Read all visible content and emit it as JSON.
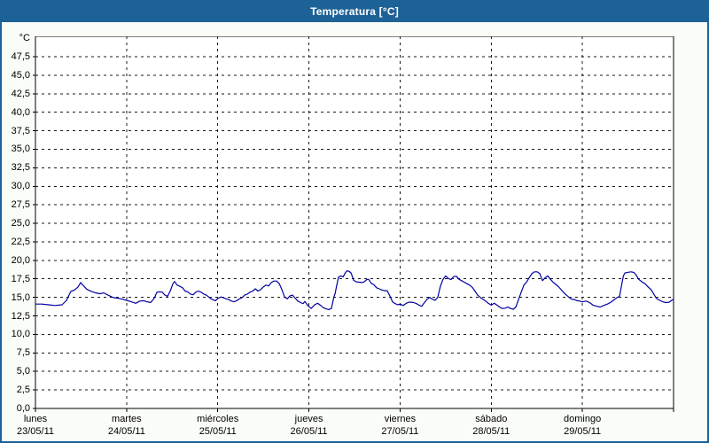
{
  "window": {
    "title": "Temperatura [°C]"
  },
  "colors": {
    "titlebar": "#1d6296",
    "window_border": "#1d6296",
    "content_bg": "#fafdf7",
    "plot_bg": "#ffffff",
    "plot_border": "#000000",
    "grid": "#1a1a1a",
    "line": "#0000a0",
    "title_text": "#ffffff"
  },
  "y_axis": {
    "unit_label": "°C",
    "min": 0,
    "max": 47.5,
    "step": 2.5,
    "tick_labels": [
      "0,0",
      "2,5",
      "5,0",
      "7,5",
      "10,0",
      "12,5",
      "15,0",
      "17,5",
      "20,0",
      "22,5",
      "25,0",
      "27,5",
      "30,0",
      "32,5",
      "35,0",
      "37,5",
      "40,0",
      "42,5",
      "45,0",
      "47,5"
    ]
  },
  "x_axis": {
    "days": [
      {
        "name": "lunes",
        "date": "23/05/11"
      },
      {
        "name": "martes",
        "date": "24/05/11"
      },
      {
        "name": "miércoles",
        "date": "25/05/11"
      },
      {
        "name": "jueves",
        "date": "26/05/11"
      },
      {
        "name": "viernes",
        "date": "27/05/11"
      },
      {
        "name": "sábado",
        "date": "28/05/11"
      },
      {
        "name": "domingo",
        "date": "29/05/11"
      }
    ]
  },
  "chart_data": {
    "type": "line",
    "title": "Temperatura [°C]",
    "ylabel": "°C",
    "ylim": [
      0,
      47.5
    ],
    "y_grid_step": 2.5,
    "grid": "dashed",
    "legend_position": "none",
    "x_unit": "hours from lunes 23/05/11 00:00",
    "x_range_hours": [
      0,
      168
    ],
    "series": [
      {
        "name": "Temperatura",
        "unit": "°C",
        "color": "#0000a0",
        "points": [
          [
            0,
            14.1
          ],
          [
            1.6,
            14.1
          ],
          [
            3.5,
            14.0
          ],
          [
            5.1,
            13.9
          ],
          [
            7.0,
            14.0
          ],
          [
            8.2,
            14.6
          ],
          [
            9.3,
            15.8
          ],
          [
            10.3,
            16.0
          ],
          [
            11.2,
            16.4
          ],
          [
            11.9,
            17.0
          ],
          [
            12.6,
            16.6
          ],
          [
            13.5,
            16.1
          ],
          [
            14.7,
            15.8
          ],
          [
            15.9,
            15.6
          ],
          [
            17.0,
            15.5
          ],
          [
            18.0,
            15.6
          ],
          [
            19.1,
            15.3
          ],
          [
            20.3,
            15.0
          ],
          [
            21.5,
            14.9
          ],
          [
            22.6,
            14.8
          ],
          [
            24,
            14.6
          ],
          [
            25.2,
            14.4
          ],
          [
            26.4,
            14.2
          ],
          [
            27.5,
            14.5
          ],
          [
            28.5,
            14.55
          ],
          [
            29.4,
            14.4
          ],
          [
            30.3,
            14.3
          ],
          [
            31.3,
            14.9
          ],
          [
            32,
            15.7
          ],
          [
            32.7,
            15.75
          ],
          [
            33.4,
            15.7
          ],
          [
            34.1,
            15.3
          ],
          [
            34.8,
            15.15
          ],
          [
            35.5,
            15.85
          ],
          [
            36.2,
            16.85
          ],
          [
            36.6,
            17.15
          ],
          [
            37.3,
            16.65
          ],
          [
            38,
            16.5
          ],
          [
            38.7,
            16.3
          ],
          [
            39.4,
            15.85
          ],
          [
            40.1,
            15.75
          ],
          [
            40.8,
            15.45
          ],
          [
            41.5,
            15.35
          ],
          [
            42.2,
            15.7
          ],
          [
            42.9,
            15.85
          ],
          [
            43.6,
            15.7
          ],
          [
            44.3,
            15.45
          ],
          [
            45,
            15.3
          ],
          [
            45.7,
            15.0
          ],
          [
            46.4,
            14.75
          ],
          [
            47.4,
            14.55
          ],
          [
            48,
            14.85
          ],
          [
            48.8,
            15.05
          ],
          [
            49.5,
            14.95
          ],
          [
            50.2,
            14.8
          ],
          [
            50.9,
            14.7
          ],
          [
            51.6,
            14.5
          ],
          [
            52.3,
            14.4
          ],
          [
            53,
            14.55
          ],
          [
            53.7,
            14.8
          ],
          [
            54.4,
            14.95
          ],
          [
            55.1,
            15.3
          ],
          [
            55.8,
            15.45
          ],
          [
            56.5,
            15.7
          ],
          [
            57.2,
            15.85
          ],
          [
            57.9,
            16.15
          ],
          [
            58.6,
            15.85
          ],
          [
            59.3,
            16.05
          ],
          [
            60,
            16.4
          ],
          [
            60.7,
            16.65
          ],
          [
            61.4,
            16.55
          ],
          [
            62.1,
            17.0
          ],
          [
            62.8,
            17.2
          ],
          [
            63.5,
            17.2
          ],
          [
            64.2,
            16.85
          ],
          [
            64.9,
            16.05
          ],
          [
            65.6,
            15.05
          ],
          [
            66.3,
            14.8
          ],
          [
            67,
            15.2
          ],
          [
            67.7,
            15.3
          ],
          [
            68.4,
            14.9
          ],
          [
            69.1,
            14.5
          ],
          [
            69.8,
            14.3
          ],
          [
            70.5,
            14.15
          ],
          [
            70.9,
            14.45
          ],
          [
            71.4,
            14.1
          ],
          [
            72,
            13.75
          ],
          [
            72.6,
            13.5
          ],
          [
            73.5,
            14.0
          ],
          [
            74.3,
            14.2
          ],
          [
            75.1,
            13.9
          ],
          [
            75.8,
            13.6
          ],
          [
            76.5,
            13.45
          ],
          [
            77.2,
            13.35
          ],
          [
            77.9,
            13.5
          ],
          [
            78.6,
            15.1
          ],
          [
            78.9,
            15.5
          ],
          [
            79.3,
            16.6
          ],
          [
            79.8,
            17.75
          ],
          [
            80.5,
            17.9
          ],
          [
            81,
            17.75
          ],
          [
            81.7,
            18.4
          ],
          [
            82.1,
            18.6
          ],
          [
            82.6,
            18.5
          ],
          [
            83.1,
            18.3
          ],
          [
            83.8,
            17.3
          ],
          [
            84.5,
            17.1
          ],
          [
            85.2,
            17.05
          ],
          [
            85.9,
            17.0
          ],
          [
            86.6,
            17.1
          ],
          [
            87.2,
            17.4
          ],
          [
            87.7,
            17.45
          ],
          [
            88.4,
            16.9
          ],
          [
            89.1,
            16.7
          ],
          [
            89.8,
            16.3
          ],
          [
            90.5,
            16.15
          ],
          [
            91.2,
            16.0
          ],
          [
            91.9,
            15.9
          ],
          [
            92.6,
            15.9
          ],
          [
            93.3,
            15.2
          ],
          [
            94,
            14.4
          ],
          [
            94.7,
            14.15
          ],
          [
            95.4,
            14.0
          ],
          [
            96,
            14.1
          ],
          [
            96.8,
            13.9
          ],
          [
            97.5,
            14.15
          ],
          [
            98.2,
            14.35
          ],
          [
            98.9,
            14.35
          ],
          [
            99.6,
            14.3
          ],
          [
            100.3,
            14.15
          ],
          [
            101,
            13.95
          ],
          [
            101.7,
            13.8
          ],
          [
            102.4,
            14.3
          ],
          [
            103.1,
            14.75
          ],
          [
            103.8,
            15.0
          ],
          [
            104.5,
            14.75
          ],
          [
            105.2,
            14.6
          ],
          [
            105.9,
            15.0
          ],
          [
            106.6,
            16.5
          ],
          [
            107.3,
            17.45
          ],
          [
            108,
            17.9
          ],
          [
            108.7,
            17.55
          ],
          [
            109.4,
            17.4
          ],
          [
            110.1,
            17.8
          ],
          [
            110.8,
            17.85
          ],
          [
            111.5,
            17.45
          ],
          [
            112.2,
            17.25
          ],
          [
            112.9,
            17.05
          ],
          [
            113.6,
            16.85
          ],
          [
            114.3,
            16.65
          ],
          [
            115,
            16.35
          ],
          [
            115.7,
            15.85
          ],
          [
            116.4,
            15.3
          ],
          [
            117.1,
            15.0
          ],
          [
            117.8,
            14.75
          ],
          [
            118.5,
            14.5
          ],
          [
            119.2,
            14.2
          ],
          [
            120,
            13.95
          ],
          [
            120.8,
            14.2
          ],
          [
            121.5,
            13.95
          ],
          [
            122.2,
            13.7
          ],
          [
            122.9,
            13.5
          ],
          [
            123.7,
            13.55
          ],
          [
            124.4,
            13.7
          ],
          [
            125.1,
            13.5
          ],
          [
            125.8,
            13.4
          ],
          [
            126.5,
            13.7
          ],
          [
            127.2,
            14.7
          ],
          [
            127.9,
            15.7
          ],
          [
            128.6,
            16.65
          ],
          [
            129.3,
            17.05
          ],
          [
            130,
            17.65
          ],
          [
            130.7,
            18.2
          ],
          [
            131.4,
            18.45
          ],
          [
            132.1,
            18.45
          ],
          [
            132.8,
            18.2
          ],
          [
            133.5,
            17.25
          ],
          [
            134.2,
            17.65
          ],
          [
            134.9,
            17.9
          ],
          [
            135.6,
            17.45
          ],
          [
            136.3,
            17.05
          ],
          [
            137,
            16.75
          ],
          [
            137.7,
            16.45
          ],
          [
            138.4,
            16.05
          ],
          [
            139.1,
            15.65
          ],
          [
            139.8,
            15.3
          ],
          [
            140.5,
            15.0
          ],
          [
            141.2,
            14.75
          ],
          [
            141.9,
            14.7
          ],
          [
            142.6,
            14.55
          ],
          [
            143.3,
            14.5
          ],
          [
            144,
            14.4
          ],
          [
            145,
            14.5
          ],
          [
            145.9,
            14.3
          ],
          [
            146.8,
            13.95
          ],
          [
            147.8,
            13.8
          ],
          [
            148.7,
            13.7
          ],
          [
            149.6,
            13.9
          ],
          [
            150.6,
            14.1
          ],
          [
            151.5,
            14.35
          ],
          [
            152.4,
            14.7
          ],
          [
            153.1,
            14.95
          ],
          [
            153.8,
            15.15
          ],
          [
            154.3,
            16.6
          ],
          [
            154.8,
            17.9
          ],
          [
            155.2,
            18.3
          ],
          [
            156.2,
            18.4
          ],
          [
            156.9,
            18.45
          ],
          [
            157.6,
            18.35
          ],
          [
            158.1,
            18.05
          ],
          [
            158.8,
            17.45
          ],
          [
            159.8,
            17.05
          ],
          [
            160.5,
            16.85
          ],
          [
            161.2,
            16.45
          ],
          [
            162.1,
            16.05
          ],
          [
            162.8,
            15.45
          ],
          [
            163.5,
            14.85
          ],
          [
            164.4,
            14.6
          ],
          [
            165.1,
            14.4
          ],
          [
            165.9,
            14.3
          ],
          [
            166.8,
            14.35
          ],
          [
            167.5,
            14.6
          ],
          [
            168,
            14.75
          ]
        ]
      }
    ]
  }
}
